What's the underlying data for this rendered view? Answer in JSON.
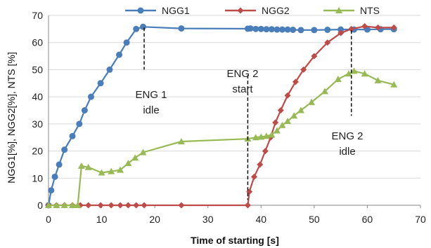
{
  "chart_data": {
    "type": "line",
    "xlabel": "Time of starting  [s]",
    "ylabel": "NGG1[%], NGG2[%], NTS [%]",
    "xlim": [
      0,
      70
    ],
    "ylim": [
      0,
      70
    ],
    "xticks": [
      0,
      10,
      20,
      30,
      40,
      50,
      60,
      70
    ],
    "yticks": [
      0,
      10,
      20,
      30,
      40,
      50,
      60,
      70
    ],
    "grid": "horizontal",
    "legend": "top",
    "series": [
      {
        "name": "NGG1",
        "color": "#4a7ebb",
        "marker": "circle",
        "points": [
          [
            0,
            0
          ],
          [
            0.5,
            5.5
          ],
          [
            1.2,
            10.5
          ],
          [
            2,
            15
          ],
          [
            3,
            20.5
          ],
          [
            4.5,
            25.5
          ],
          [
            5.8,
            30
          ],
          [
            6.8,
            35
          ],
          [
            8,
            40
          ],
          [
            9.8,
            45
          ],
          [
            11.5,
            50
          ],
          [
            13.3,
            55.5
          ],
          [
            14.7,
            60
          ],
          [
            16.5,
            65
          ],
          [
            17.8,
            65.8
          ],
          [
            25,
            65.2
          ],
          [
            37.5,
            65.1
          ],
          [
            38,
            65.2
          ],
          [
            39,
            65
          ],
          [
            40,
            65
          ],
          [
            41,
            64.9
          ],
          [
            42,
            64.9
          ],
          [
            43,
            64.8
          ],
          [
            44,
            64.8
          ],
          [
            45,
            64.8
          ],
          [
            46,
            64.7
          ],
          [
            47.5,
            64.6
          ],
          [
            50,
            64.6
          ],
          [
            52.5,
            64.7
          ],
          [
            55,
            64.8
          ],
          [
            57.5,
            64.8
          ],
          [
            60,
            64.8
          ],
          [
            62.5,
            64.9
          ],
          [
            65,
            64.9
          ]
        ]
      },
      {
        "name": "NGG2",
        "color": "#be4b48",
        "marker": "diamond",
        "points": [
          [
            0,
            0
          ],
          [
            1.5,
            0
          ],
          [
            3,
            0
          ],
          [
            4.5,
            0
          ],
          [
            6,
            0
          ],
          [
            7.5,
            0
          ],
          [
            9.8,
            0
          ],
          [
            11.8,
            0
          ],
          [
            13.5,
            0
          ],
          [
            15,
            0
          ],
          [
            16.5,
            0
          ],
          [
            18,
            0
          ],
          [
            25,
            0
          ],
          [
            37.5,
            0
          ],
          [
            37.8,
            5
          ],
          [
            38.7,
            10.5
          ],
          [
            39.8,
            15
          ],
          [
            40.8,
            20
          ],
          [
            41.8,
            25
          ],
          [
            42.7,
            30.5
          ],
          [
            43.7,
            35
          ],
          [
            45,
            40.5
          ],
          [
            46.5,
            45.5
          ],
          [
            48,
            50
          ],
          [
            50,
            55
          ],
          [
            52.5,
            60
          ],
          [
            55,
            63.5
          ],
          [
            57,
            65
          ],
          [
            59.5,
            66
          ],
          [
            62,
            65.5
          ],
          [
            65,
            65.5
          ]
        ]
      },
      {
        "name": "NTS",
        "color": "#98b954",
        "marker": "triangle",
        "points": [
          [
            0,
            0
          ],
          [
            1.5,
            0
          ],
          [
            3,
            0
          ],
          [
            4.5,
            0
          ],
          [
            5.5,
            0
          ],
          [
            6.2,
            14.5
          ],
          [
            7.5,
            14
          ],
          [
            10,
            12
          ],
          [
            11.8,
            12.5
          ],
          [
            13.5,
            13
          ],
          [
            15,
            15.5
          ],
          [
            16.3,
            17.5
          ],
          [
            17.8,
            19.5
          ],
          [
            25,
            23.5
          ],
          [
            37.5,
            24.5
          ],
          [
            39,
            25
          ],
          [
            40,
            25.2
          ],
          [
            41,
            25.5
          ],
          [
            42,
            26
          ],
          [
            43,
            27.5
          ],
          [
            44,
            29.5
          ],
          [
            45,
            31
          ],
          [
            46.2,
            33
          ],
          [
            47.5,
            35
          ],
          [
            49.5,
            38
          ],
          [
            52,
            42
          ],
          [
            54.5,
            46.5
          ],
          [
            56.5,
            48.5
          ],
          [
            57.5,
            49.5
          ],
          [
            59.5,
            48.5
          ],
          [
            62,
            46
          ],
          [
            65,
            44.5
          ]
        ]
      }
    ],
    "annotations": [
      {
        "id": "eng1-idle",
        "lines": [
          "ENG 1",
          "idle"
        ],
        "x": 18,
        "y": 65.5,
        "y_end": 50
      },
      {
        "id": "eng2-start",
        "lines": [
          "ENG 2",
          "start"
        ],
        "x": 37.5,
        "y": 48,
        "y_end": 2
      },
      {
        "id": "eng2-idle",
        "lines": [
          "ENG 2",
          "idle"
        ],
        "x": 57,
        "y": 64.5,
        "y_end": 33
      }
    ]
  }
}
